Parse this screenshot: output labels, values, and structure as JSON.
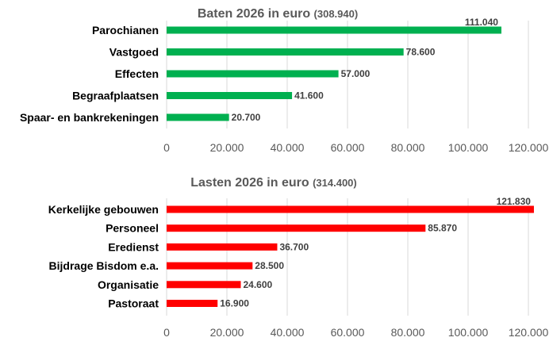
{
  "chart_data": [
    {
      "type": "bar",
      "orientation": "horizontal",
      "title": "Baten 2026  in euro",
      "title_total": "(308.940)",
      "categories": [
        "Parochianen",
        "Vastgoed",
        "Effecten",
        "Begraafplaatsen",
        "Spaar- en bankrekeningen"
      ],
      "values": [
        111040,
        78600,
        57000,
        41600,
        20700
      ],
      "value_labels": [
        "111.040",
        "78.600",
        "57.000",
        "41.600",
        "20.700"
      ],
      "xlim": [
        0,
        120000
      ],
      "xticks": [
        "0",
        "20.000",
        "40.000",
        "60.000",
        "80.000",
        "100.000",
        "120.000"
      ],
      "grid": true,
      "color": "#00b050"
    },
    {
      "type": "bar",
      "orientation": "horizontal",
      "title": "Lasten 2026  in euro",
      "title_total": "(314.400)",
      "categories": [
        "Kerkelijke gebouwen",
        "Personeel",
        "Eredienst",
        "Bijdrage Bisdom e.a.",
        "Organisatie",
        "Pastoraat"
      ],
      "values": [
        121830,
        85870,
        36700,
        28500,
        24600,
        16900
      ],
      "value_labels": [
        "121.830",
        "85.870",
        "36.700",
        "28.500",
        "24.600",
        "16.900"
      ],
      "xlim": [
        0,
        120000
      ],
      "xticks": [
        "0",
        "20.000",
        "40.000",
        "60.000",
        "80.000",
        "100.000",
        "120.000"
      ],
      "grid": true,
      "color": "#ff0000"
    }
  ]
}
